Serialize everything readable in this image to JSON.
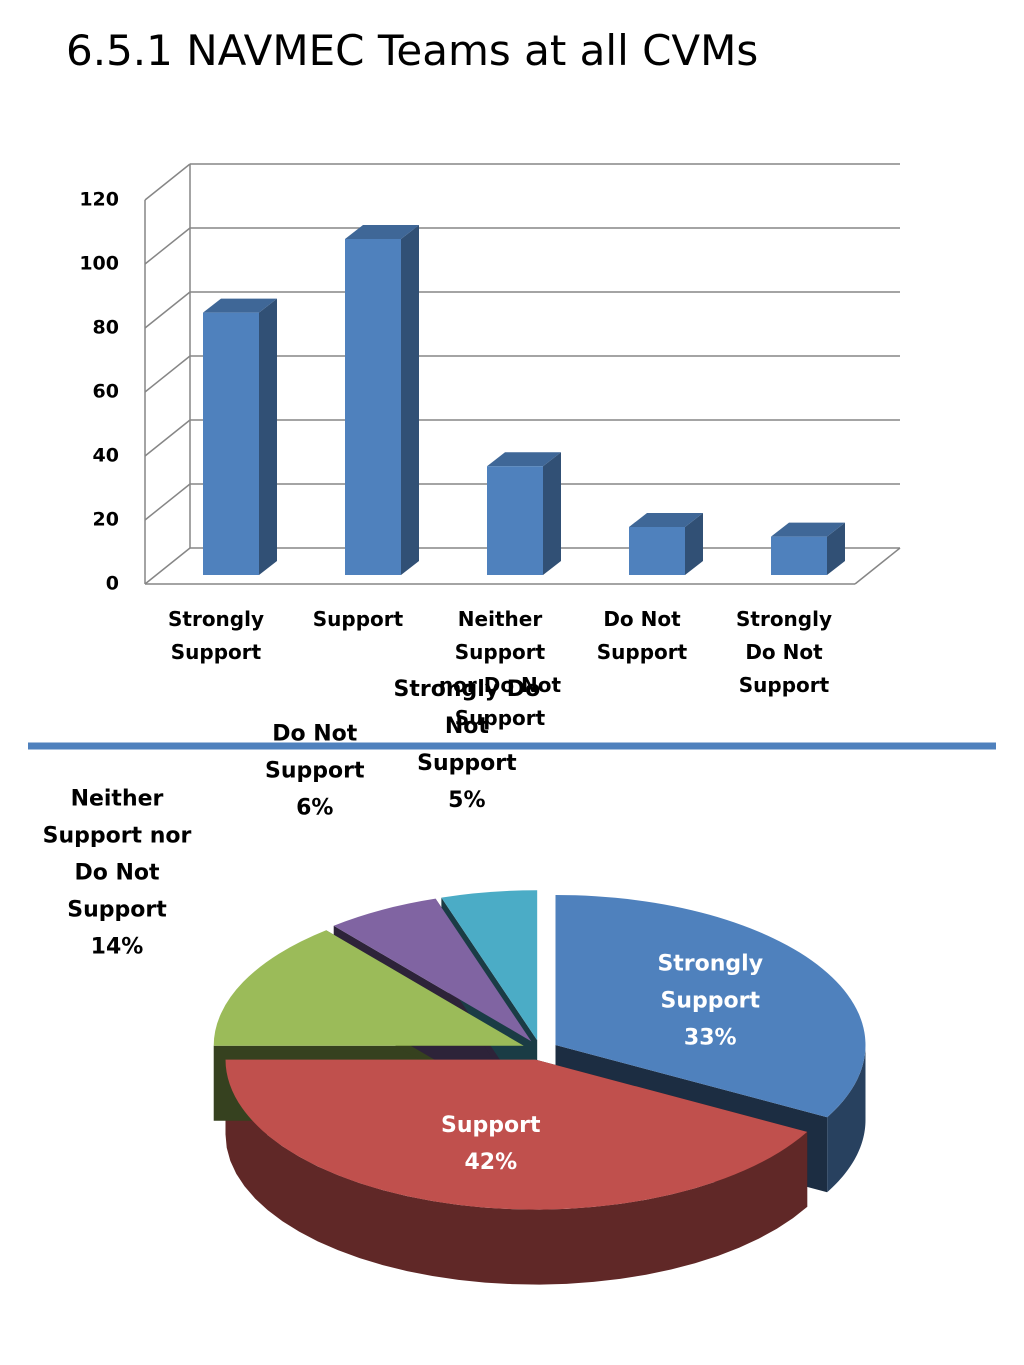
{
  "title": "6.5.1  NAVMEC Teams at all CVMs",
  "chart_data": [
    {
      "type": "bar",
      "categories": [
        "Strongly Support",
        "Support",
        "Neither Support nor Do Not Support",
        "Do Not Support",
        "Strongly Do Not Support"
      ],
      "values": [
        82,
        105,
        34,
        15,
        12
      ],
      "color": "#4f81bd",
      "ylim": [
        0,
        120
      ],
      "yticks": [
        0,
        20,
        40,
        60,
        80,
        100,
        120
      ],
      "grid": true
    },
    {
      "type": "pie",
      "categories": [
        "Strongly Support",
        "Support",
        "Neither Support nor Do Not Support",
        "Do Not Support",
        "Strongly Do Not Support"
      ],
      "values": [
        33,
        42,
        14,
        6,
        5
      ],
      "value_labels": [
        "33%",
        "42%",
        "14%",
        "6%",
        "5%"
      ],
      "colors": [
        "#4f81bd",
        "#c0504d",
        "#9bbb59",
        "#8064a2",
        "#4bacc6"
      ]
    }
  ]
}
